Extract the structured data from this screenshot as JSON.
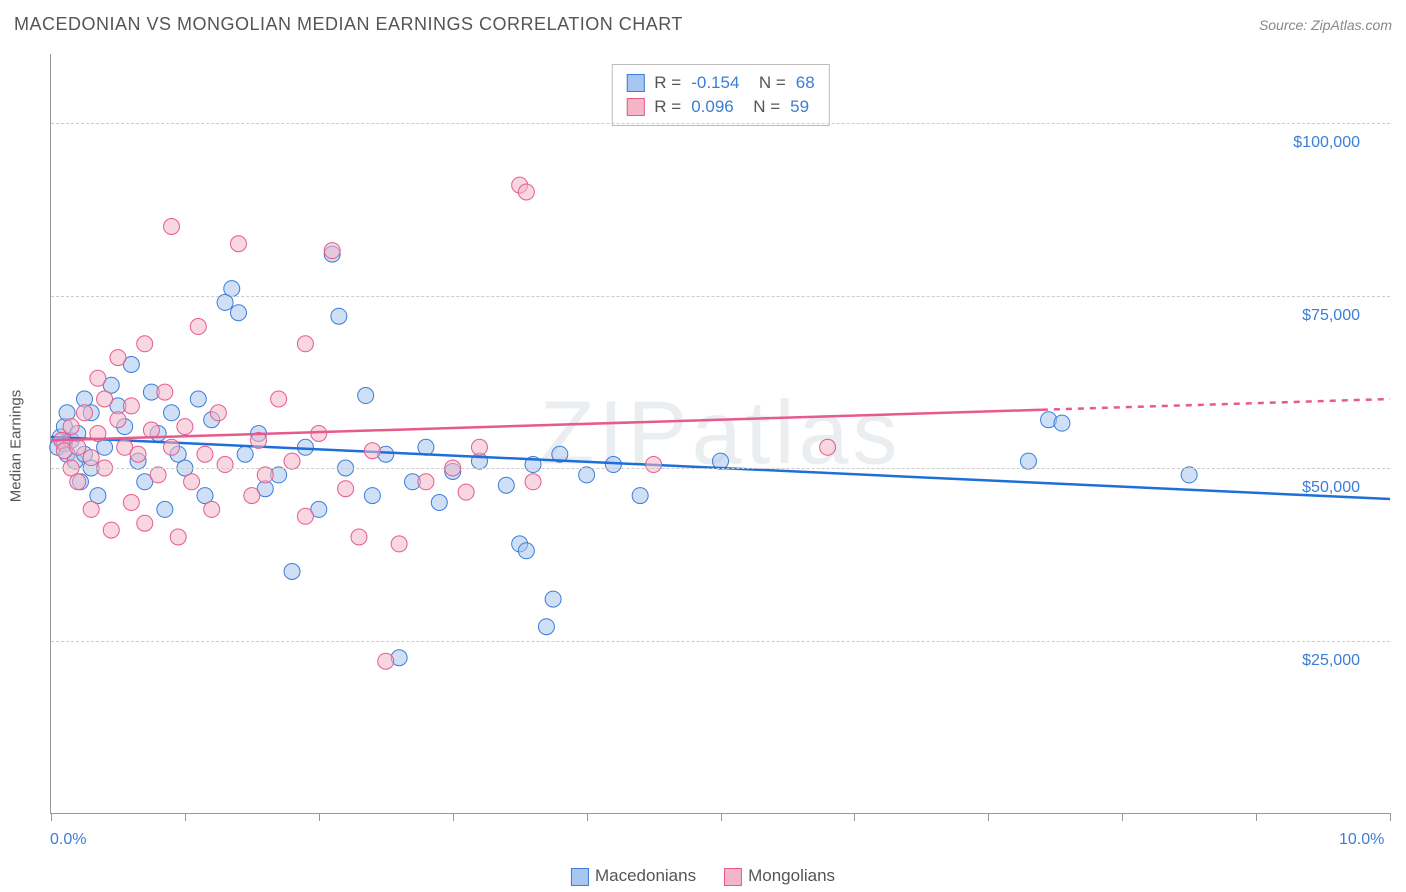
{
  "header": {
    "title": "MACEDONIAN VS MONGOLIAN MEDIAN EARNINGS CORRELATION CHART",
    "source": "Source: ZipAtlas.com"
  },
  "watermark": "ZIPatlas",
  "chart": {
    "type": "scatter",
    "ylabel": "Median Earnings",
    "xlim": [
      0,
      10
    ],
    "ylim": [
      0,
      110000
    ],
    "xlim_labels": {
      "min": "0.0%",
      "max": "10.0%"
    },
    "xtick_positions": [
      0,
      1,
      2,
      3,
      4,
      5,
      6,
      7,
      8,
      9,
      10
    ],
    "yticks": [
      25000,
      50000,
      75000,
      100000
    ],
    "ytick_labels": [
      "$25,000",
      "$50,000",
      "$75,000",
      "$100,000"
    ],
    "grid_color": "#cccccc",
    "axis_color": "#999999",
    "background_color": "#ffffff",
    "tick_label_color": "#3b7dd8",
    "label_fontsize": 15,
    "tick_fontsize": 16,
    "marker_radius": 8,
    "series": [
      {
        "name": "Macedonians",
        "fill": "#a7c7ee",
        "stroke": "#3b7dd8",
        "fill_opacity": 0.55,
        "trend": {
          "y0": 54500,
          "y1": 45500,
          "color": "#1f6fd8",
          "width": 2.5,
          "dash_from_x": 10
        },
        "stats": {
          "R": "-0.154",
          "N": "68"
        },
        "points": [
          [
            0.05,
            53000
          ],
          [
            0.07,
            54500
          ],
          [
            0.1,
            53500
          ],
          [
            0.1,
            56000
          ],
          [
            0.12,
            52000
          ],
          [
            0.12,
            58000
          ],
          [
            0.15,
            54000
          ],
          [
            0.18,
            51000
          ],
          [
            0.2,
            55000
          ],
          [
            0.22,
            48000
          ],
          [
            0.25,
            60000
          ],
          [
            0.25,
            52000
          ],
          [
            0.3,
            58000
          ],
          [
            0.3,
            50000
          ],
          [
            0.35,
            46000
          ],
          [
            0.4,
            53000
          ],
          [
            0.45,
            62000
          ],
          [
            0.5,
            59000
          ],
          [
            0.55,
            56000
          ],
          [
            0.6,
            65000
          ],
          [
            0.65,
            51000
          ],
          [
            0.7,
            48000
          ],
          [
            0.75,
            61000
          ],
          [
            0.8,
            55000
          ],
          [
            0.85,
            44000
          ],
          [
            0.9,
            58000
          ],
          [
            0.95,
            52000
          ],
          [
            1.0,
            50000
          ],
          [
            1.1,
            60000
          ],
          [
            1.15,
            46000
          ],
          [
            1.2,
            57000
          ],
          [
            1.3,
            74000
          ],
          [
            1.35,
            76000
          ],
          [
            1.4,
            72500
          ],
          [
            1.45,
            52000
          ],
          [
            1.55,
            55000
          ],
          [
            1.6,
            47000
          ],
          [
            1.7,
            49000
          ],
          [
            1.8,
            35000
          ],
          [
            1.9,
            53000
          ],
          [
            2.0,
            44000
          ],
          [
            2.1,
            81000
          ],
          [
            2.15,
            72000
          ],
          [
            2.2,
            50000
          ],
          [
            2.35,
            60500
          ],
          [
            2.4,
            46000
          ],
          [
            2.5,
            52000
          ],
          [
            2.6,
            22500
          ],
          [
            2.7,
            48000
          ],
          [
            2.8,
            53000
          ],
          [
            2.9,
            45000
          ],
          [
            3.0,
            49500
          ],
          [
            3.2,
            51000
          ],
          [
            3.4,
            47500
          ],
          [
            3.5,
            39000
          ],
          [
            3.55,
            38000
          ],
          [
            3.6,
            50500
          ],
          [
            3.7,
            27000
          ],
          [
            3.75,
            31000
          ],
          [
            3.8,
            52000
          ],
          [
            4.0,
            49000
          ],
          [
            4.2,
            50500
          ],
          [
            4.4,
            46000
          ],
          [
            5.0,
            51000
          ],
          [
            7.3,
            51000
          ],
          [
            7.45,
            57000
          ],
          [
            7.55,
            56500
          ],
          [
            8.5,
            49000
          ]
        ]
      },
      {
        "name": "Mongolians",
        "fill": "#f4b6c6",
        "stroke": "#e75a8d",
        "fill_opacity": 0.55,
        "trend": {
          "y0": 54000,
          "y1": 60000,
          "color": "#e75a8d",
          "width": 2.5,
          "dash_from_x": 7.4
        },
        "stats": {
          "R": "0.096",
          "N": "59"
        },
        "points": [
          [
            0.08,
            54000
          ],
          [
            0.1,
            52500
          ],
          [
            0.15,
            56000
          ],
          [
            0.15,
            50000
          ],
          [
            0.2,
            53000
          ],
          [
            0.2,
            48000
          ],
          [
            0.25,
            58000
          ],
          [
            0.3,
            51500
          ],
          [
            0.3,
            44000
          ],
          [
            0.35,
            63000
          ],
          [
            0.35,
            55000
          ],
          [
            0.4,
            60000
          ],
          [
            0.4,
            50000
          ],
          [
            0.45,
            41000
          ],
          [
            0.5,
            57000
          ],
          [
            0.5,
            66000
          ],
          [
            0.55,
            53000
          ],
          [
            0.6,
            45000
          ],
          [
            0.6,
            59000
          ],
          [
            0.65,
            52000
          ],
          [
            0.7,
            68000
          ],
          [
            0.7,
            42000
          ],
          [
            0.75,
            55500
          ],
          [
            0.8,
            49000
          ],
          [
            0.85,
            61000
          ],
          [
            0.9,
            85000
          ],
          [
            0.9,
            53000
          ],
          [
            0.95,
            40000
          ],
          [
            1.0,
            56000
          ],
          [
            1.05,
            48000
          ],
          [
            1.1,
            70500
          ],
          [
            1.15,
            52000
          ],
          [
            1.2,
            44000
          ],
          [
            1.25,
            58000
          ],
          [
            1.3,
            50500
          ],
          [
            1.4,
            82500
          ],
          [
            1.5,
            46000
          ],
          [
            1.55,
            54000
          ],
          [
            1.6,
            49000
          ],
          [
            1.7,
            60000
          ],
          [
            1.8,
            51000
          ],
          [
            1.9,
            68000
          ],
          [
            1.9,
            43000
          ],
          [
            2.0,
            55000
          ],
          [
            2.1,
            81500
          ],
          [
            2.2,
            47000
          ],
          [
            2.3,
            40000
          ],
          [
            2.4,
            52500
          ],
          [
            2.5,
            22000
          ],
          [
            2.6,
            39000
          ],
          [
            2.8,
            48000
          ],
          [
            3.0,
            50000
          ],
          [
            3.1,
            46500
          ],
          [
            3.2,
            53000
          ],
          [
            3.5,
            91000
          ],
          [
            3.55,
            90000
          ],
          [
            3.6,
            48000
          ],
          [
            4.5,
            50500
          ],
          [
            5.8,
            53000
          ]
        ]
      }
    ]
  },
  "bottom_legend": [
    {
      "label": "Macedonians",
      "fill": "#a7c7ee",
      "stroke": "#3b7dd8"
    },
    {
      "label": "Mongolians",
      "fill": "#f4b6c6",
      "stroke": "#e75a8d"
    }
  ]
}
